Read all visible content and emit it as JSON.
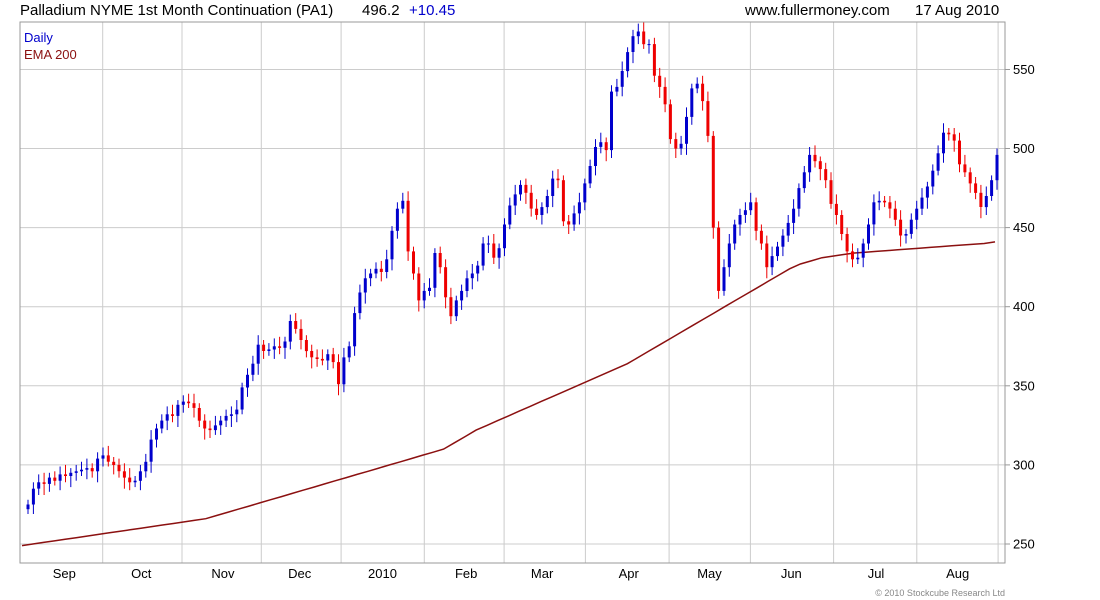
{
  "header": {
    "title": "Palladium NYME 1st Month Continuation (PA1)",
    "last_price": "496.2",
    "change": "+10.45",
    "source": "www.fullermoney.com",
    "date": "17 Aug 2010"
  },
  "colors": {
    "up": "#0000cc",
    "down": "#ee0000",
    "ema": "#8b1010",
    "grid": "#cccccc",
    "change_text": "#0000cc",
    "legend_daily": "#0000cc",
    "legend_ema": "#8b1010"
  },
  "credit": "© 2010 Stockcube Research Ltd",
  "chart_data": {
    "type": "candlestick",
    "legend": [
      "Daily",
      "EMA 200"
    ],
    "legend_placement": "top-left",
    "grid": true,
    "ylim": [
      238,
      580
    ],
    "y_ticks": [
      250,
      300,
      350,
      400,
      450,
      500,
      550
    ],
    "x_range": [
      0,
      100
    ],
    "x_months": [
      {
        "label": "Sep",
        "x": 4.5
      },
      {
        "label": "Oct",
        "x": 12.3
      },
      {
        "label": "Nov",
        "x": 20.6
      },
      {
        "label": "Dec",
        "x": 28.4
      },
      {
        "label": "2010",
        "x": 36.8
      },
      {
        "label": "Feb",
        "x": 45.3
      },
      {
        "label": "Mar",
        "x": 53.0
      },
      {
        "label": "Apr",
        "x": 61.8
      },
      {
        "label": "May",
        "x": 70.0
      },
      {
        "label": "Jun",
        "x": 78.3
      },
      {
        "label": "Jul",
        "x": 86.9
      },
      {
        "label": "Aug",
        "x": 95.2
      }
    ],
    "closes": [
      275,
      285,
      289,
      288,
      292,
      290,
      294,
      293,
      295,
      296,
      297,
      298,
      296,
      304,
      306,
      302,
      300,
      296,
      292,
      289,
      290,
      296,
      302,
      316,
      323,
      328,
      332,
      331,
      338,
      340,
      339,
      336,
      328,
      323,
      322,
      325,
      328,
      331,
      332,
      335,
      349,
      357,
      364,
      376,
      372,
      373,
      375,
      374,
      378,
      391,
      386,
      379,
      372,
      368,
      367,
      366,
      370,
      365,
      351,
      368,
      375,
      396,
      409,
      418,
      421,
      424,
      422,
      430,
      448,
      462,
      467,
      435,
      421,
      404,
      410,
      412,
      434,
      425,
      406,
      394,
      404,
      410,
      418,
      421,
      426,
      440,
      440,
      431,
      437,
      452,
      464,
      471,
      477,
      472,
      462,
      458,
      463,
      470,
      481,
      480,
      454,
      452,
      459,
      466,
      478,
      489,
      501,
      504,
      499,
      536,
      539,
      549,
      561,
      571,
      574,
      566,
      566,
      546,
      539,
      528,
      506,
      500,
      503,
      520,
      538,
      541,
      530,
      508,
      450,
      410,
      425,
      440,
      452,
      458,
      461,
      466,
      448,
      440,
      425,
      432,
      438,
      445,
      453,
      462,
      475,
      485,
      496,
      492,
      487,
      480,
      465,
      458,
      446,
      435,
      430,
      431,
      440,
      452,
      466,
      467,
      466,
      462,
      455,
      445,
      446,
      455,
      462,
      469,
      476,
      486,
      497,
      510,
      509,
      505,
      490,
      485,
      478,
      472,
      463,
      470,
      480,
      496
    ],
    "ema": [
      249,
      250,
      251,
      252,
      253,
      254,
      255,
      256,
      257,
      258,
      259,
      260,
      261,
      262,
      263,
      264,
      265,
      266,
      268,
      270,
      272,
      274,
      276,
      278,
      280,
      282,
      284,
      286,
      288,
      290,
      292,
      294,
      296,
      298,
      300,
      302,
      304,
      306,
      308,
      310,
      314,
      318,
      322,
      325,
      328,
      331,
      334,
      337,
      340,
      343,
      346,
      349,
      352,
      355,
      358,
      361,
      364,
      368,
      372,
      376,
      380,
      384,
      388,
      392,
      396,
      400,
      404,
      408,
      412,
      416,
      420,
      424,
      427,
      429,
      431,
      432,
      433,
      434,
      434.5,
      435,
      435.5,
      436,
      436.5,
      437,
      437.5,
      438,
      438.5,
      439,
      439.5,
      440,
      441
    ]
  }
}
